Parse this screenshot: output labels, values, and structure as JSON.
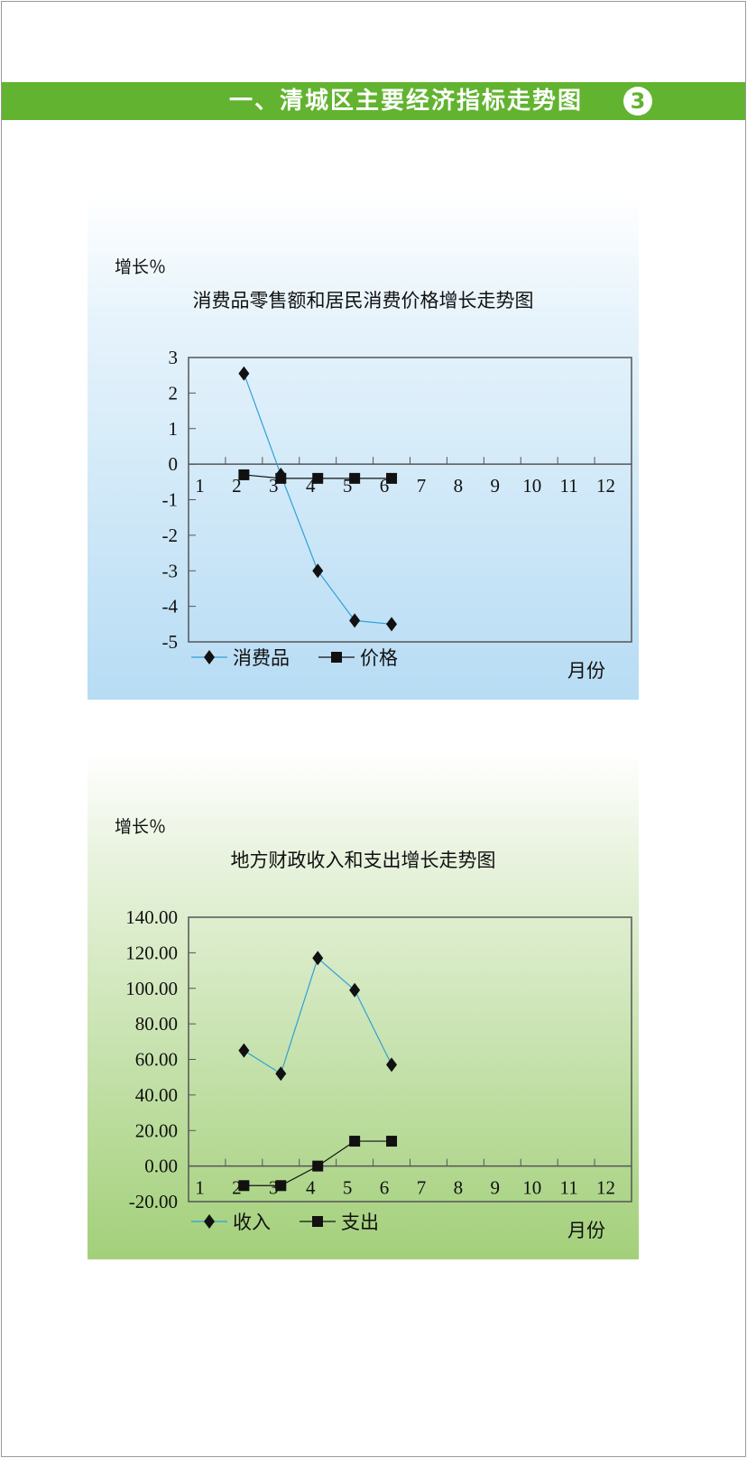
{
  "header": {
    "title": "一、清城区主要经济指标走势图",
    "badge": "3",
    "color": "#62b32f"
  },
  "chart_data": [
    {
      "type": "line",
      "title": "消费品零售额和居民消费价格增长走势图",
      "ylabel": "增长％",
      "xlabel": "月份",
      "categories": [
        "1",
        "2",
        "3",
        "4",
        "5",
        "6",
        "7",
        "8",
        "9",
        "10",
        "11",
        "12"
      ],
      "ylim": [
        -5,
        3
      ],
      "yticks": [
        "3",
        "2",
        "1",
        "0",
        "-1",
        "-2",
        "-3",
        "-4",
        "-5"
      ],
      "ytick_values": [
        3,
        2,
        1,
        0,
        -1,
        -2,
        -3,
        -4,
        -5
      ],
      "legend": "bottom-left",
      "grid": false,
      "series": [
        {
          "name": "消费品",
          "marker": "diamond",
          "line_color": "#2fa0d8",
          "x": [
            2,
            3,
            4,
            5,
            6
          ],
          "values": [
            2.55,
            -0.3,
            -3.0,
            -4.4,
            -4.5
          ]
        },
        {
          "name": "价格",
          "marker": "square",
          "line_color": "#111111",
          "x": [
            2,
            3,
            4,
            5,
            6
          ],
          "values": [
            -0.3,
            -0.4,
            -0.4,
            -0.4,
            -0.4
          ]
        }
      ]
    },
    {
      "type": "line",
      "title": "地方财政收入和支出增长走势图",
      "ylabel": "增长％",
      "xlabel": "月份",
      "categories": [
        "1",
        "2",
        "3",
        "4",
        "5",
        "6",
        "7",
        "8",
        "9",
        "10",
        "11",
        "12"
      ],
      "ylim": [
        -20,
        140
      ],
      "yticks": [
        "140.00",
        "120.00",
        "100.00",
        "80.00",
        "60.00",
        "40.00",
        "20.00",
        "0.00",
        "-20.00"
      ],
      "ytick_values": [
        140,
        120,
        100,
        80,
        60,
        40,
        20,
        0,
        -20
      ],
      "legend": "bottom-left",
      "grid": false,
      "series": [
        {
          "name": "收入",
          "marker": "diamond",
          "line_color": "#2fa0d8",
          "x": [
            2,
            3,
            4,
            5,
            6
          ],
          "values": [
            65,
            52,
            117,
            99,
            57
          ]
        },
        {
          "name": "支出",
          "marker": "square",
          "line_color": "#111111",
          "x": [
            2,
            3,
            4,
            5,
            6
          ],
          "values": [
            -11,
            -11,
            0,
            14,
            14
          ]
        }
      ]
    }
  ]
}
